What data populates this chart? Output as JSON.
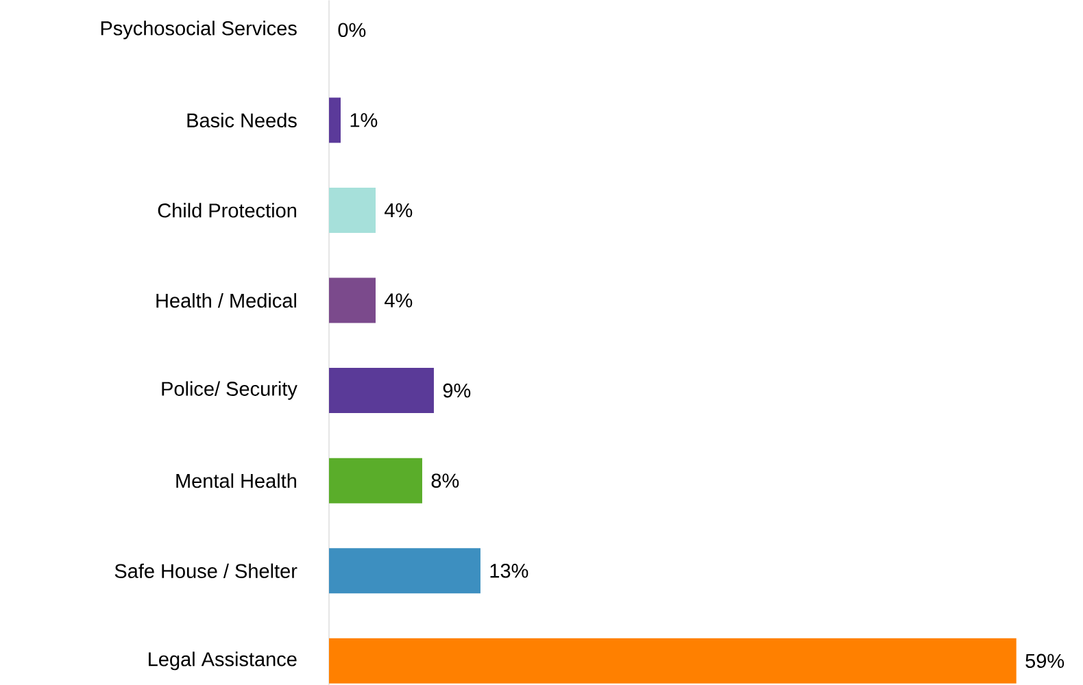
{
  "chart_data": {
    "type": "bar",
    "orientation": "horizontal",
    "categories": [
      "Psychosocial Services",
      "Basic Needs",
      "Child Protection",
      "Health / Medical",
      "Police/ Security",
      "Mental Health",
      "Safe House / Shelter",
      "Legal Assistance"
    ],
    "values": [
      0,
      1,
      4,
      4,
      9,
      8,
      13,
      59
    ],
    "value_labels": [
      "0%",
      "1%",
      "4%",
      "4%",
      "9%",
      "8%",
      "13%",
      "59%"
    ],
    "colors": [
      "#5b3a9a",
      "#5b3a9a",
      "#a6e0da",
      "#7b4a8c",
      "#5a3a98",
      "#5aad2a",
      "#3d8fc0",
      "#ff8000"
    ]
  }
}
